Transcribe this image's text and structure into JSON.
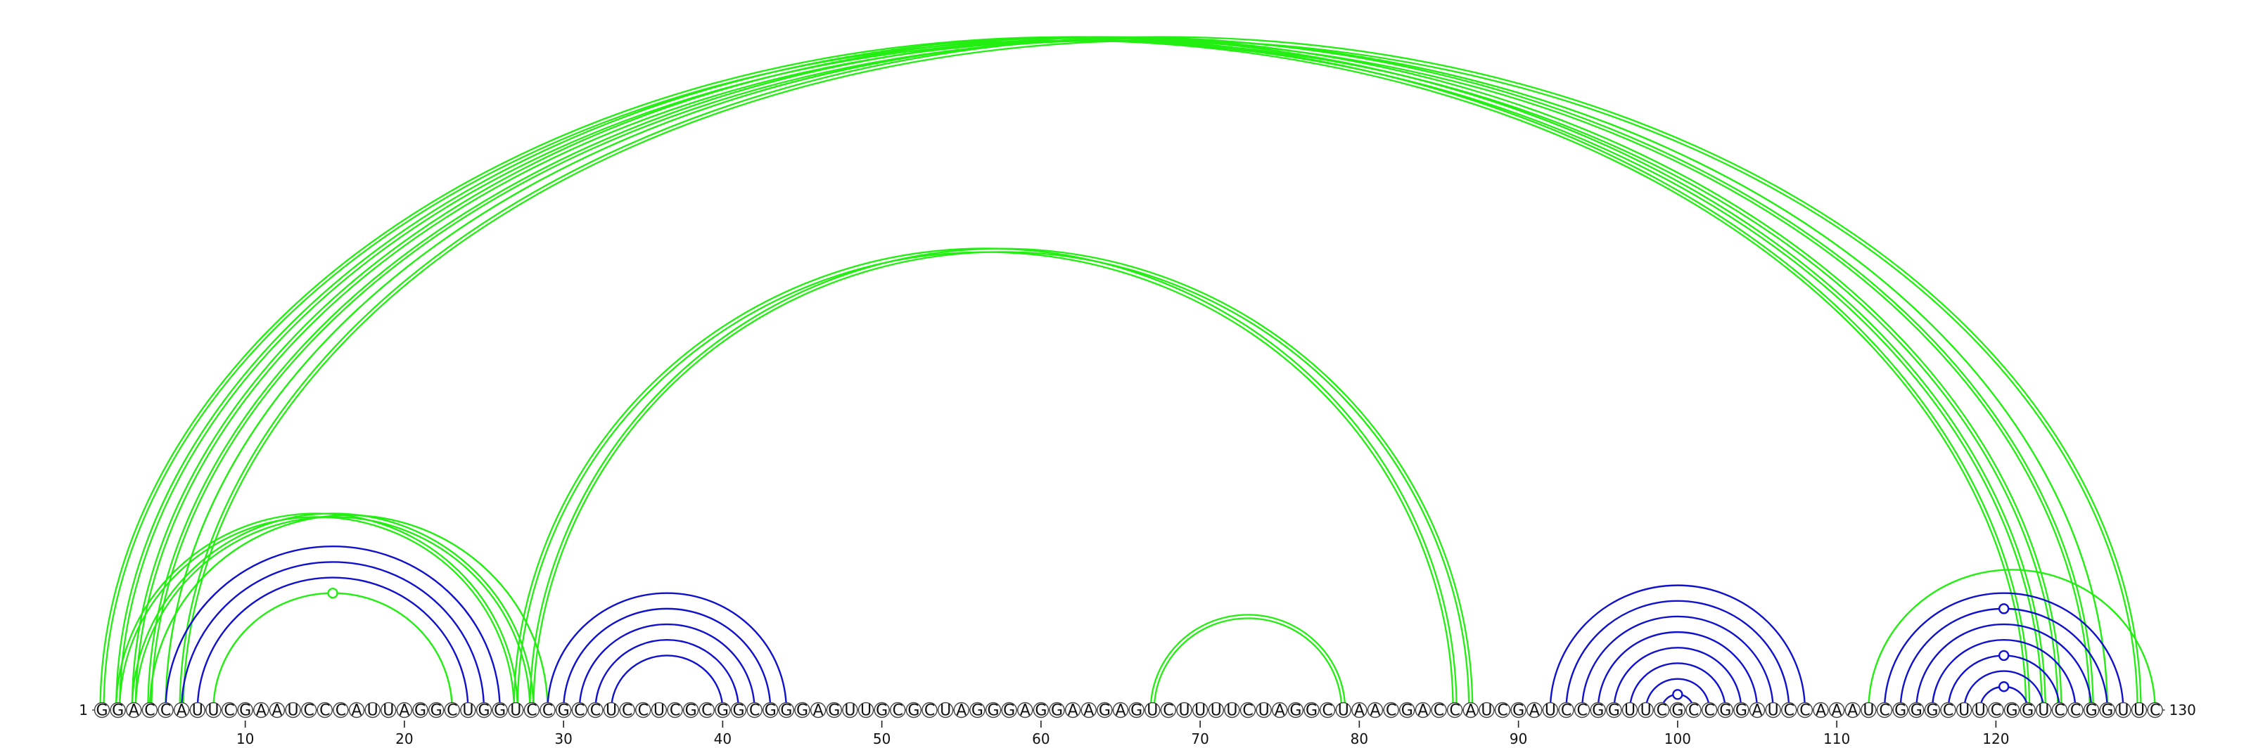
{
  "sequence": "GGACCAUUCGAAUCCCAUUAGGCUGGUCCGCCUCCUCGCGGCGGGAGUUGCGCUAGGGAGGAAGAGUCUUUUCUAGGCUAACGACCAUCGAUCCGGUUCGCCGGAUCCAAAUCGGGCUUCGGUCCGGUUC",
  "start_label": "1",
  "end_label": "130",
  "tick_labels": [
    "10",
    "20",
    "30",
    "40",
    "50",
    "60",
    "70",
    "80",
    "90",
    "100",
    "110",
    "120"
  ],
  "colors": {
    "green": "#22ee11",
    "blue": "#1111cc"
  },
  "chart_data": {
    "type": "arc-diagram",
    "length": 130,
    "ticks": [
      10,
      20,
      30,
      40,
      50,
      60,
      70,
      80,
      90,
      100,
      110,
      120
    ],
    "arcs": [
      {
        "i": 1,
        "j": 122,
        "color": "green",
        "double": true
      },
      {
        "i": 2,
        "j": 123,
        "color": "green",
        "double": true
      },
      {
        "i": 3,
        "j": 124,
        "color": "green",
        "double": true
      },
      {
        "i": 4,
        "j": 126,
        "color": "green",
        "double": true
      },
      {
        "i": 5,
        "j": 127,
        "color": "green",
        "double": false
      },
      {
        "i": 6,
        "j": 129,
        "color": "green",
        "double": true
      },
      {
        "i": 2,
        "j": 27,
        "color": "green",
        "double": true
      },
      {
        "i": 3,
        "j": 28,
        "color": "green",
        "double": true
      },
      {
        "i": 4,
        "j": 29,
        "color": "green",
        "double": false
      },
      {
        "i": 5,
        "j": 26,
        "color": "blue",
        "double": false
      },
      {
        "i": 6,
        "j": 25,
        "color": "blue",
        "double": false
      },
      {
        "i": 7,
        "j": 24,
        "color": "blue",
        "double": false
      },
      {
        "i": 8,
        "j": 23,
        "color": "green",
        "double": false,
        "marker": true
      },
      {
        "i": 27,
        "j": 86,
        "color": "green",
        "double": true
      },
      {
        "i": 28,
        "j": 87,
        "color": "green",
        "double": true
      },
      {
        "i": 29,
        "j": 44,
        "color": "blue",
        "double": false
      },
      {
        "i": 30,
        "j": 43,
        "color": "blue",
        "double": false
      },
      {
        "i": 31,
        "j": 42,
        "color": "blue",
        "double": false
      },
      {
        "i": 32,
        "j": 41,
        "color": "blue",
        "double": false
      },
      {
        "i": 33,
        "j": 40,
        "color": "blue",
        "double": false
      },
      {
        "i": 67,
        "j": 79,
        "color": "green",
        "double": true
      },
      {
        "i": 92,
        "j": 108,
        "color": "blue",
        "double": false
      },
      {
        "i": 93,
        "j": 107,
        "color": "blue",
        "double": false
      },
      {
        "i": 94,
        "j": 106,
        "color": "blue",
        "double": false
      },
      {
        "i": 95,
        "j": 105,
        "color": "blue",
        "double": false
      },
      {
        "i": 96,
        "j": 104,
        "color": "blue",
        "double": false
      },
      {
        "i": 97,
        "j": 103,
        "color": "blue",
        "double": false
      },
      {
        "i": 98,
        "j": 102,
        "color": "blue",
        "double": false
      },
      {
        "i": 99,
        "j": 101,
        "color": "blue",
        "double": false,
        "marker": true
      },
      {
        "i": 112,
        "j": 130,
        "color": "green",
        "double": false
      },
      {
        "i": 113,
        "j": 128,
        "color": "blue",
        "double": false
      },
      {
        "i": 114,
        "j": 127,
        "color": "blue",
        "double": false,
        "marker": true
      },
      {
        "i": 115,
        "j": 126,
        "color": "blue",
        "double": false
      },
      {
        "i": 116,
        "j": 125,
        "color": "blue",
        "double": false
      },
      {
        "i": 117,
        "j": 124,
        "color": "blue",
        "double": false,
        "marker": true
      },
      {
        "i": 118,
        "j": 123,
        "color": "blue",
        "double": false
      },
      {
        "i": 119,
        "j": 122,
        "color": "blue",
        "double": false,
        "marker": true
      }
    ]
  }
}
